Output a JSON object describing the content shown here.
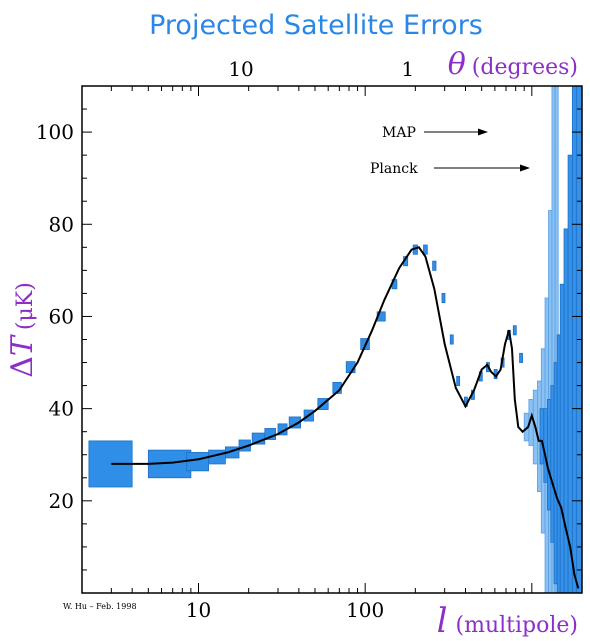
{
  "chart_data": {
    "type": "line",
    "title": "Projected Satellite Errors",
    "top_axis": {
      "symbol": "θ",
      "unit": "(degrees)",
      "tick_labels": [
        "10",
        "1"
      ],
      "tick_l_values": [
        18,
        180
      ]
    },
    "x_axis": {
      "symbol": "l",
      "unit": "(multipole)",
      "scale": "log",
      "range": [
        2,
        2000
      ],
      "tick_labels": [
        "10",
        "100"
      ],
      "tick_values": [
        10,
        100
      ]
    },
    "y_axis": {
      "symbol_delta": "Δ",
      "symbol": "T",
      "unit": "(μK)",
      "range": [
        0,
        110
      ],
      "ticks": [
        20,
        40,
        60,
        80,
        100
      ]
    },
    "theory_curve": {
      "l": [
        3,
        5,
        7,
        10,
        15,
        20,
        30,
        40,
        50,
        70,
        90,
        110,
        130,
        160,
        190,
        210,
        230,
        260,
        300,
        350,
        400,
        450,
        500,
        540,
        570,
        610,
        650,
        690,
        730,
        760,
        790,
        830,
        880,
        950,
        1000,
        1050,
        1100,
        1150,
        1200,
        1250,
        1300,
        1350,
        1420,
        1500,
        1600,
        1700,
        1800,
        1900
      ],
      "dT": [
        28,
        28,
        28.3,
        29,
        30.5,
        32,
        34.5,
        37,
        39.5,
        44,
        50,
        57,
        63.5,
        70.5,
        74.5,
        75,
        73,
        66,
        54,
        44.5,
        40.5,
        44,
        48.5,
        49.5,
        48,
        47,
        48.5,
        54,
        57,
        53,
        42,
        36,
        35,
        36,
        38.5,
        36,
        33,
        33,
        30,
        27,
        25,
        23,
        20.5,
        18.5,
        14,
        10,
        4,
        1
      ]
    },
    "current_data": [
      {
        "l": 3,
        "dT": 28,
        "xerr": [
          0.8,
          1.0
        ],
        "yerr": 5
      },
      {
        "l": 7,
        "dT": 28,
        "xerr": [
          2,
          2
        ],
        "yerr": 3
      },
      {
        "l": 10,
        "dT": 28.5,
        "xerr": [
          1.5,
          1.5
        ],
        "yerr": 2
      },
      {
        "l": 13,
        "dT": 29.5,
        "xerr": [
          1.5,
          1.5
        ],
        "yerr": 1.5
      },
      {
        "l": 16,
        "dT": 30.5,
        "xerr": [
          1.5,
          1.5
        ],
        "yerr": 1.2
      },
      {
        "l": 19,
        "dT": 32,
        "xerr": [
          1.5,
          1.5
        ],
        "yerr": 1.2
      },
      {
        "l": 23,
        "dT": 33.5,
        "xerr": [
          2,
          2
        ],
        "yerr": 1.2
      },
      {
        "l": 27,
        "dT": 34.5,
        "xerr": [
          2,
          2
        ],
        "yerr": 1.2
      },
      {
        "l": 32,
        "dT": 35.5,
        "xerr": [
          2,
          2
        ],
        "yerr": 1.2
      },
      {
        "l": 38,
        "dT": 37,
        "xerr": [
          3,
          3
        ],
        "yerr": 1.2
      },
      {
        "l": 46,
        "dT": 38.5,
        "xerr": [
          3,
          3
        ],
        "yerr": 1.2
      },
      {
        "l": 56,
        "dT": 41,
        "xerr": [
          4,
          4
        ],
        "yerr": 1.2
      },
      {
        "l": 68,
        "dT": 44.5,
        "xerr": [
          4,
          4
        ],
        "yerr": 1.2
      },
      {
        "l": 82,
        "dT": 49,
        "xerr": [
          5,
          5
        ],
        "yerr": 1.2
      },
      {
        "l": 100,
        "dT": 54,
        "xerr": [
          6,
          6
        ],
        "yerr": 1.2
      },
      {
        "l": 125,
        "dT": 60,
        "xerr": [
          7,
          7
        ],
        "yerr": 1.0
      },
      {
        "l": 150,
        "dT": 67,
        "xerr": [
          5,
          5
        ],
        "yerr": 1.0
      },
      {
        "l": 175,
        "dT": 72,
        "xerr": [
          5,
          5
        ],
        "yerr": 1.0
      },
      {
        "l": 200,
        "dT": 74.5,
        "xerr": [
          6,
          6
        ],
        "yerr": 1.0
      },
      {
        "l": 230,
        "dT": 74.5,
        "xerr": [
          6,
          6
        ],
        "yerr": 1.0
      },
      {
        "l": 260,
        "dT": 71,
        "xerr": [
          6,
          6
        ],
        "yerr": 1.0
      },
      {
        "l": 295,
        "dT": 64,
        "xerr": [
          6,
          6
        ],
        "yerr": 1.0
      },
      {
        "l": 330,
        "dT": 55,
        "xerr": [
          6,
          6
        ],
        "yerr": 1.0
      },
      {
        "l": 360,
        "dT": 46,
        "xerr": [
          6,
          6
        ],
        "yerr": 1.0
      },
      {
        "l": 400,
        "dT": 41.5,
        "xerr": [
          6,
          6
        ],
        "yerr": 1.0
      },
      {
        "l": 440,
        "dT": 43,
        "xerr": [
          6,
          6
        ],
        "yerr": 1.0
      },
      {
        "l": 490,
        "dT": 47,
        "xerr": [
          6,
          6
        ],
        "yerr": 1.0
      },
      {
        "l": 540,
        "dT": 49,
        "xerr": [
          6,
          6
        ],
        "yerr": 1.0
      },
      {
        "l": 600,
        "dT": 47.5,
        "xerr": [
          6,
          6
        ],
        "yerr": 1.0
      },
      {
        "l": 660,
        "dT": 50,
        "xerr": [
          6,
          6
        ],
        "yerr": 1.0
      },
      {
        "l": 720,
        "dT": 56,
        "xerr": [
          6,
          6
        ],
        "yerr": 1.0
      },
      {
        "l": 780,
        "dT": 57,
        "xerr": [
          6,
          6
        ],
        "yerr": 1.0
      },
      {
        "l": 850,
        "dT": 51,
        "xerr": [
          6,
          6
        ],
        "yerr": 1.0
      }
    ],
    "map_bands": [
      {
        "l0": 900,
        "l1": 960,
        "dT": 36,
        "err": 3
      },
      {
        "l0": 960,
        "l1": 1020,
        "dT": 37,
        "err": 5
      },
      {
        "l0": 1020,
        "l1": 1080,
        "dT": 36,
        "err": 8
      },
      {
        "l0": 1080,
        "l1": 1140,
        "dT": 34,
        "err": 12
      },
      {
        "l0": 1140,
        "l1": 1200,
        "dT": 33,
        "err": 20
      },
      {
        "l0": 1200,
        "l1": 1260,
        "dT": 31,
        "err": 33
      },
      {
        "l0": 1260,
        "l1": 1320,
        "dT": 28,
        "err": 55
      },
      {
        "l0": 1320,
        "l1": 1380,
        "dT": 26,
        "err": 90
      },
      {
        "l0": 1380,
        "l1": 1440,
        "dT": 24,
        "err": 120
      }
    ],
    "planck_bands": [
      {
        "l0": 1120,
        "l1": 1180,
        "dT": 34,
        "err": 6
      },
      {
        "l0": 1180,
        "l1": 1240,
        "dT": 32,
        "err": 8
      },
      {
        "l0": 1240,
        "l1": 1300,
        "dT": 30,
        "err": 12
      },
      {
        "l0": 1300,
        "l1": 1360,
        "dT": 28,
        "err": 17
      },
      {
        "l0": 1360,
        "l1": 1420,
        "dT": 26,
        "err": 24
      },
      {
        "l0": 1420,
        "l1": 1480,
        "dT": 24,
        "err": 32
      },
      {
        "l0": 1480,
        "l1": 1560,
        "dT": 22,
        "err": 45
      },
      {
        "l0": 1560,
        "l1": 1650,
        "dT": 19,
        "err": 60
      },
      {
        "l0": 1650,
        "l1": 1750,
        "dT": 15,
        "err": 80
      },
      {
        "l0": 1750,
        "l1": 1850,
        "dT": 11,
        "err": 110
      },
      {
        "l0": 1850,
        "l1": 2000,
        "dT": 6,
        "err": 140
      }
    ],
    "annotations": {
      "map": "MAP",
      "planck": "Planck"
    },
    "credit": "W. Hu – Feb. 1998",
    "colors": {
      "title": "#2b86e6",
      "axis_labels": "#8c2fc7",
      "data_fill": "#2f8fe8",
      "data_stroke": "#1f6fc2",
      "planck_fill": "#3592ea",
      "map_fill": "#8ac0f2",
      "curve": "#000000"
    }
  }
}
